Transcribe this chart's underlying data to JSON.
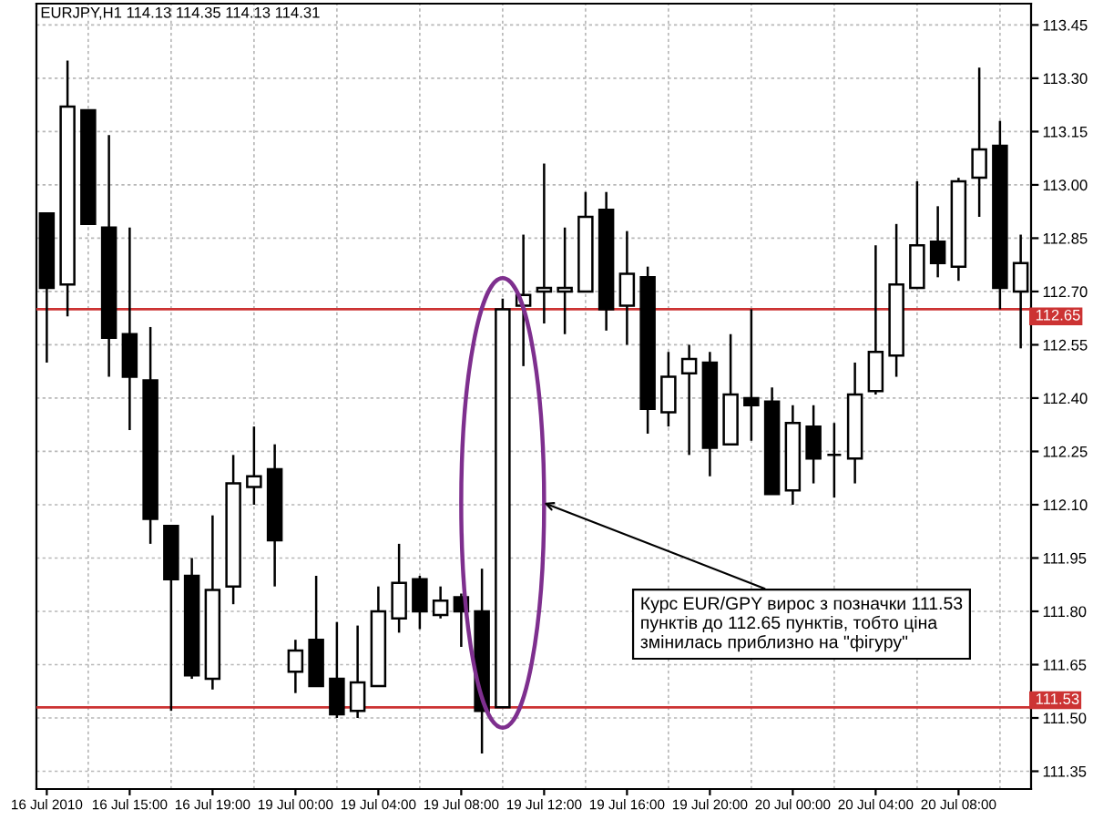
{
  "chart_data": {
    "type": "candlestick",
    "title": "EURJPY,H1 114.13 114.35 114.13 114.31",
    "categories": [
      "16 Jul 2010",
      null,
      null,
      null,
      "16 Jul 15:00",
      null,
      null,
      null,
      "16 Jul 19:00",
      null,
      null,
      null,
      "19 Jul 00:00",
      null,
      null,
      null,
      "19 Jul 04:00",
      null,
      null,
      null,
      "19 Jul 08:00",
      null,
      null,
      null,
      "19 Jul 12:00",
      null,
      null,
      null,
      "19 Jul 16:00",
      null,
      null,
      null,
      "19 Jul 20:00",
      null,
      null,
      null,
      "20 Jul 00:00",
      null,
      null,
      null,
      "20 Jul 04:00",
      null,
      null,
      null,
      "20 Jul 08:00",
      null,
      null,
      null
    ],
    "ohlc": [
      [
        112.92,
        112.92,
        112.5,
        112.71
      ],
      [
        112.72,
        113.35,
        112.63,
        113.22
      ],
      [
        113.21,
        113.21,
        112.89,
        112.89
      ],
      [
        112.88,
        113.14,
        112.46,
        112.57
      ],
      [
        112.58,
        112.88,
        112.31,
        112.46
      ],
      [
        112.45,
        112.6,
        111.99,
        112.06
      ],
      [
        112.04,
        112.04,
        111.52,
        111.89
      ],
      [
        111.9,
        111.95,
        111.61,
        111.62
      ],
      [
        111.61,
        112.07,
        111.58,
        111.86
      ],
      [
        111.87,
        112.24,
        111.82,
        112.16
      ],
      [
        112.15,
        112.32,
        112.1,
        112.18
      ],
      [
        112.2,
        112.27,
        111.87,
        112.0
      ],
      [
        111.63,
        111.72,
        111.57,
        111.69
      ],
      [
        111.72,
        111.9,
        111.59,
        111.59
      ],
      [
        111.61,
        111.77,
        111.5,
        111.51
      ],
      [
        111.52,
        111.76,
        111.5,
        111.6
      ],
      [
        111.59,
        111.87,
        111.59,
        111.8
      ],
      [
        111.78,
        111.99,
        111.74,
        111.88
      ],
      [
        111.89,
        111.9,
        111.75,
        111.8
      ],
      [
        111.79,
        111.87,
        111.78,
        111.83
      ],
      [
        111.84,
        111.85,
        111.7,
        111.8
      ],
      [
        111.8,
        111.92,
        111.4,
        111.52
      ],
      [
        111.53,
        112.68,
        111.53,
        112.65
      ],
      [
        112.66,
        112.86,
        112.49,
        112.69
      ],
      [
        112.7,
        113.06,
        112.61,
        112.71
      ],
      [
        112.7,
        112.88,
        112.58,
        112.71
      ],
      [
        112.7,
        112.98,
        112.7,
        112.91
      ],
      [
        112.93,
        112.98,
        112.59,
        112.65
      ],
      [
        112.66,
        112.87,
        112.55,
        112.75
      ],
      [
        112.74,
        112.77,
        112.3,
        112.37
      ],
      [
        112.36,
        112.53,
        112.32,
        112.46
      ],
      [
        112.47,
        112.55,
        112.24,
        112.51
      ],
      [
        112.5,
        112.53,
        112.18,
        112.26
      ],
      [
        112.27,
        112.58,
        112.27,
        112.41
      ],
      [
        112.4,
        112.65,
        112.28,
        112.38
      ],
      [
        112.39,
        112.43,
        112.13,
        112.13
      ],
      [
        112.14,
        112.38,
        112.1,
        112.33
      ],
      [
        112.32,
        112.38,
        112.16,
        112.23
      ],
      [
        112.24,
        112.33,
        112.12,
        112.24
      ],
      [
        112.23,
        112.5,
        112.16,
        112.41
      ],
      [
        112.42,
        112.83,
        112.41,
        112.53
      ],
      [
        112.52,
        112.89,
        112.46,
        112.72
      ],
      [
        112.71,
        113.01,
        112.71,
        112.83
      ],
      [
        112.84,
        112.94,
        112.74,
        112.78
      ],
      [
        112.77,
        113.02,
        112.73,
        113.01
      ],
      [
        113.02,
        113.33,
        112.91,
        113.1
      ],
      [
        113.11,
        113.18,
        112.65,
        112.71
      ],
      [
        112.7,
        112.86,
        112.54,
        112.78
      ]
    ],
    "colors": [
      "#000000",
      "#ffffff",
      "#000000",
      "#000000",
      "#000000",
      "#000000",
      "#000000",
      "#000000",
      "#ffffff",
      "#ffffff",
      "#ffffff",
      "#000000",
      "#ffffff",
      "#000000",
      "#000000",
      "#ffffff",
      "#ffffff",
      "#ffffff",
      "#000000",
      "#ffffff",
      "#000000",
      "#000000",
      "#ffffff",
      "#ffffff",
      "#ffffff",
      "#ffffff",
      "#ffffff",
      "#000000",
      "#ffffff",
      "#000000",
      "#ffffff",
      "#ffffff",
      "#000000",
      "#ffffff",
      "#000000",
      "#000000",
      "#ffffff",
      "#000000",
      "#000000",
      "#ffffff",
      "#ffffff",
      "#ffffff",
      "#ffffff",
      "#000000",
      "#ffffff",
      "#ffffff",
      "#000000",
      "#ffffff"
    ],
    "ylim": [
      111.3,
      113.51
    ],
    "yticks": [
      111.35,
      {
        "value": 111.5,
        "label": "111.50"
      },
      111.65,
      {
        "value": 111.8,
        "label": "111.80"
      },
      111.95,
      {
        "value": 112.1,
        "label": "112.10"
      },
      112.25,
      {
        "value": 112.4,
        "label": "112.40"
      },
      112.55,
      {
        "value": 112.7,
        "label": "112.70"
      },
      112.85,
      {
        "value": 113.0,
        "label": "113.00"
      },
      113.15,
      {
        "value": 113.3,
        "label": "113.30"
      },
      113.45
    ],
    "grid": true,
    "ref_lines": [
      {
        "axis": "y",
        "value": 112.65,
        "label": "112.65",
        "color": "#cc3333"
      },
      {
        "axis": "y",
        "value": 111.53,
        "label": "111.53",
        "color": "#cc3333"
      }
    ],
    "annotations": [
      "Курс EUR/GPY вирос з позначки 111.53\nпунктів до 112.65 пунктів, тобто ціна\nзмінилась приблизно на \"фігуру\""
    ]
  }
}
